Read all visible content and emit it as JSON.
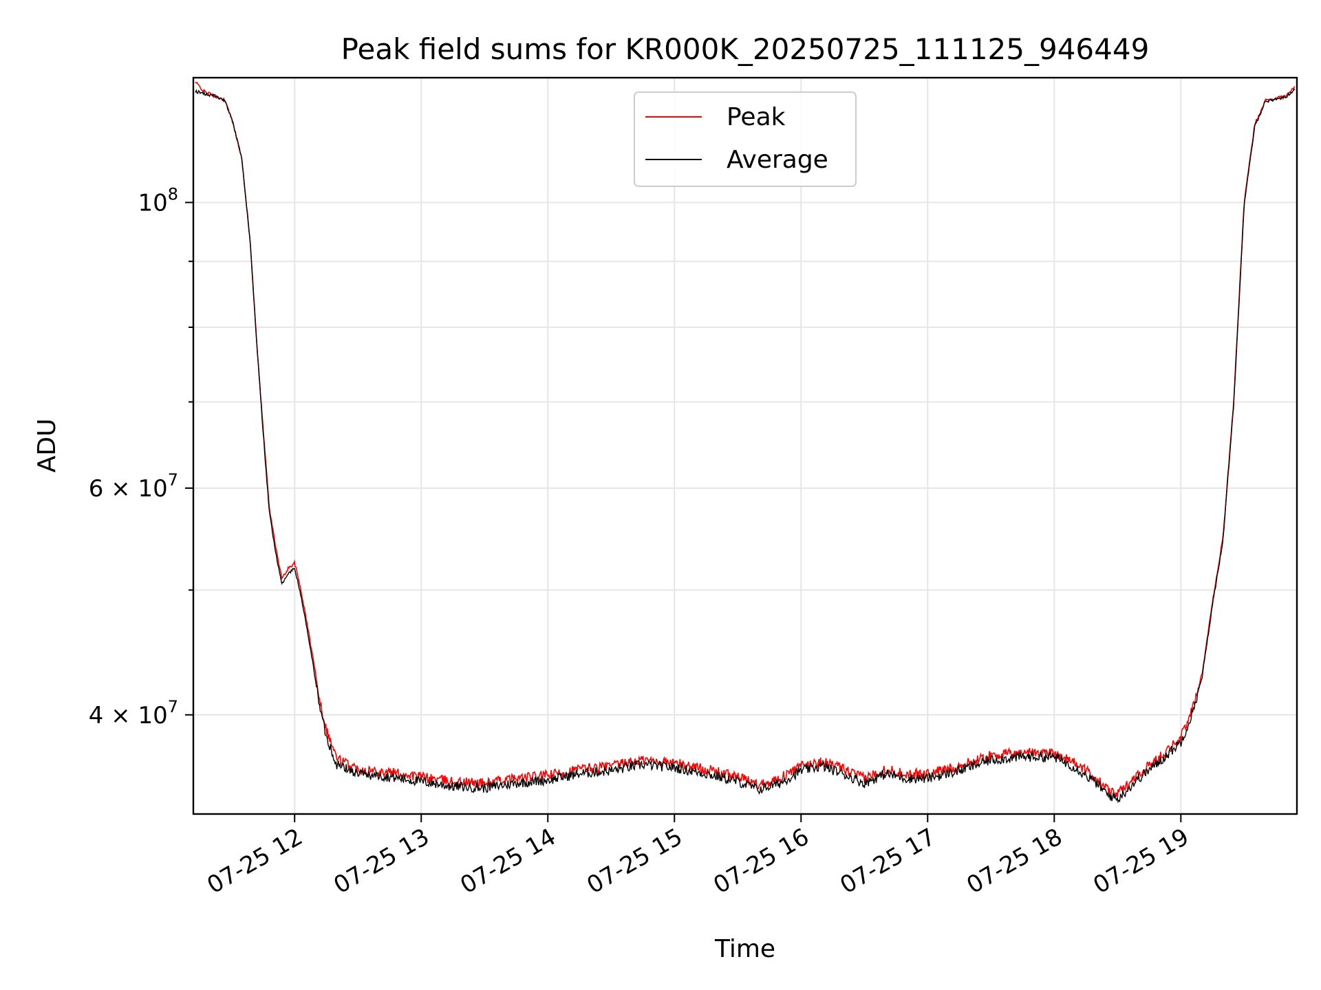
{
  "chart_data": {
    "type": "line",
    "title": "Peak field sums for KR000K_20250725_111125_946449",
    "xlabel": "Time",
    "ylabel": "ADU",
    "yscale": "log",
    "xlim": [
      "2025-07-25T11:12",
      "2025-07-25T19:55"
    ],
    "ylim": [
      33500000,
      125000000
    ],
    "grid": true,
    "legend_position": "upper-center",
    "x_ticks": [
      {
        "value": "2025-07-25T12:00",
        "label": "07-25 12"
      },
      {
        "value": "2025-07-25T13:00",
        "label": "07-25 13"
      },
      {
        "value": "2025-07-25T14:00",
        "label": "07-25 14"
      },
      {
        "value": "2025-07-25T15:00",
        "label": "07-25 15"
      },
      {
        "value": "2025-07-25T16:00",
        "label": "07-25 16"
      },
      {
        "value": "2025-07-25T17:00",
        "label": "07-25 17"
      },
      {
        "value": "2025-07-25T18:00",
        "label": "07-25 18"
      },
      {
        "value": "2025-07-25T19:00",
        "label": "07-25 19"
      }
    ],
    "y_major_ticks": [
      {
        "value": 100000000,
        "label": "10",
        "exp": "8",
        "mant": ""
      },
      {
        "value": 60000000,
        "label": "6 × 10",
        "exp": "7",
        "mant": "6"
      },
      {
        "value": 40000000,
        "label": "4 × 10",
        "exp": "7",
        "mant": "4"
      }
    ],
    "y_minor_ticks": [
      50000000,
      70000000,
      80000000,
      90000000
    ],
    "x": [
      "2025-07-25T11:13",
      "2025-07-25T11:17",
      "2025-07-25T11:22",
      "2025-07-25T11:27",
      "2025-07-25T11:31",
      "2025-07-25T11:35",
      "2025-07-25T11:39",
      "2025-07-25T11:42",
      "2025-07-25T11:45",
      "2025-07-25T11:48",
      "2025-07-25T11:51",
      "2025-07-25T11:54",
      "2025-07-25T11:57",
      "2025-07-25T12:00",
      "2025-07-25T12:03",
      "2025-07-25T12:06",
      "2025-07-25T12:09",
      "2025-07-25T12:12",
      "2025-07-25T12:15",
      "2025-07-25T12:20",
      "2025-07-25T12:30",
      "2025-07-25T12:45",
      "2025-07-25T13:00",
      "2025-07-25T13:15",
      "2025-07-25T13:30",
      "2025-07-25T13:45",
      "2025-07-25T14:00",
      "2025-07-25T14:15",
      "2025-07-25T14:30",
      "2025-07-25T14:45",
      "2025-07-25T15:00",
      "2025-07-25T15:15",
      "2025-07-25T15:30",
      "2025-07-25T15:40",
      "2025-07-25T15:50",
      "2025-07-25T16:00",
      "2025-07-25T16:10",
      "2025-07-25T16:20",
      "2025-07-25T16:30",
      "2025-07-25T16:40",
      "2025-07-25T16:50",
      "2025-07-25T17:00",
      "2025-07-25T17:15",
      "2025-07-25T17:30",
      "2025-07-25T17:45",
      "2025-07-25T18:00",
      "2025-07-25T18:10",
      "2025-07-25T18:20",
      "2025-07-25T18:25",
      "2025-07-25T18:30",
      "2025-07-25T18:40",
      "2025-07-25T18:50",
      "2025-07-25T19:00",
      "2025-07-25T19:05",
      "2025-07-25T19:10",
      "2025-07-25T19:15",
      "2025-07-25T19:20",
      "2025-07-25T19:25",
      "2025-07-25T19:30",
      "2025-07-25T19:35",
      "2025-07-25T19:40",
      "2025-07-25T19:45",
      "2025-07-25T19:50",
      "2025-07-25T19:54"
    ],
    "series": [
      {
        "name": "Peak",
        "color": "#ff0000",
        "values": [
          124000000,
          122000000,
          121000000,
          120000000,
          115000000,
          108000000,
          93000000,
          78000000,
          67000000,
          58000000,
          54000000,
          51000000,
          52000000,
          52500000,
          50000000,
          47000000,
          44000000,
          41000000,
          39000000,
          37000000,
          36300000,
          36100000,
          35800000,
          35500000,
          35400000,
          35700000,
          35900000,
          36300000,
          36500000,
          36900000,
          36700000,
          36300000,
          35800000,
          35300000,
          35700000,
          36500000,
          36800000,
          36300000,
          35700000,
          36300000,
          36000000,
          36000000,
          36500000,
          37200000,
          37400000,
          37400000,
          36700000,
          35700000,
          35000000,
          34700000,
          36000000,
          37100000,
          38400000,
          40200000,
          43000000,
          49000000,
          55000000,
          70000000,
          100000000,
          115000000,
          120000000,
          120500000,
          121000000,
          123000000
        ]
      },
      {
        "name": "Average",
        "color": "#000000",
        "values": [
          122000000,
          121500000,
          121000000,
          120000000,
          115000000,
          108000000,
          93000000,
          78000000,
          66500000,
          57500000,
          53500000,
          50500000,
          51500000,
          52000000,
          49500000,
          46500000,
          43500000,
          40500000,
          38500000,
          36600000,
          36000000,
          35800000,
          35500000,
          35200000,
          35100000,
          35400000,
          35600000,
          36000000,
          36200000,
          36600000,
          36400000,
          36000000,
          35500000,
          35000000,
          35400000,
          36200000,
          36500000,
          36000000,
          35400000,
          36000000,
          35700000,
          35700000,
          36200000,
          36900000,
          37100000,
          37100000,
          36400000,
          35400000,
          34700000,
          34400000,
          35700000,
          36800000,
          38100000,
          39900000,
          42700000,
          48700000,
          54700000,
          69500000,
          99500000,
          114500000,
          119800000,
          120300000,
          120800000,
          122500000
        ]
      }
    ]
  }
}
